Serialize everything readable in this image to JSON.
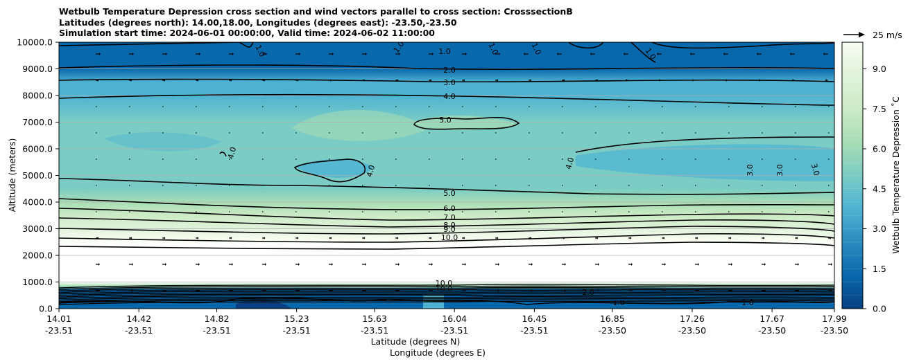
{
  "chart_data": {
    "type": "contourf",
    "title_lines": [
      "Wetbulb Temperature Depression cross section and wind vectors parallel to cross section: CrosssectionB",
      "Latitudes (degrees north): 14.00,18.00, Longitudes (degrees east): -23.50,-23.50",
      "Simulation start time: 2024-06-01 00:00:00, Valid time: 2024-06-02 11:00:00"
    ],
    "ylabel": "Altitude (meters)",
    "xlabel_lat": "Latitude (degrees N)",
    "xlabel_lon": "Longitude (degrees E)",
    "ylim": [
      0,
      10000
    ],
    "y_ticks": [
      "0.0",
      "1000.0",
      "2000.0",
      "3000.0",
      "4000.0",
      "5000.0",
      "6000.0",
      "7000.0",
      "8000.0",
      "9000.0",
      "10000.0"
    ],
    "x_ticks": [
      {
        "lat": "14.01",
        "lon": "-23.51"
      },
      {
        "lat": "14.42",
        "lon": "-23.51"
      },
      {
        "lat": "14.82",
        "lon": "-23.51"
      },
      {
        "lat": "15.23",
        "lon": "-23.51"
      },
      {
        "lat": "15.63",
        "lon": "-23.51"
      },
      {
        "lat": "16.04",
        "lon": "-23.51"
      },
      {
        "lat": "16.45",
        "lon": "-23.51"
      },
      {
        "lat": "16.85",
        "lon": "-23.50"
      },
      {
        "lat": "17.26",
        "lon": "-23.50"
      },
      {
        "lat": "17.67",
        "lon": "-23.50"
      },
      {
        "lat": "17.99",
        "lon": "-23.50"
      }
    ],
    "x_range": [
      14.01,
      17.99
    ],
    "colorbar": {
      "label": "Wetbulb Temperature Depression ˚C",
      "range": [
        0,
        10
      ],
      "ticks": [
        "0.0",
        "1.5",
        "3.0",
        "4.5",
        "6.0",
        "7.5",
        "9.0"
      ],
      "colors": [
        "#084081",
        "#0868ac",
        "#2b8cbe",
        "#4eb3d3",
        "#7bccc4",
        "#a8ddb5",
        "#ccebc5",
        "#e0f3db",
        "#f7fcf0"
      ]
    },
    "contour_labels": [
      "1.0",
      "2.0",
      "3.0",
      "4.0",
      "5.0",
      "6.0",
      "7.0",
      "8.0",
      "9.0",
      "10.0"
    ],
    "wind_reference": {
      "label": "25 m/s",
      "speed": 25
    },
    "profile": [
      {
        "alt": 10000,
        "value": 0.9
      },
      {
        "alt": 9000,
        "value": 1.8
      },
      {
        "alt": 8500,
        "value": 3.2
      },
      {
        "alt": 8000,
        "value": 4.3
      },
      {
        "alt": 7000,
        "value": 4.7
      },
      {
        "alt": 6000,
        "value": 4.6
      },
      {
        "alt": 5000,
        "value": 4.4
      },
      {
        "alt": 4500,
        "value": 5.0
      },
      {
        "alt": 4000,
        "value": 6.2
      },
      {
        "alt": 3500,
        "value": 7.5
      },
      {
        "alt": 3000,
        "value": 8.6
      },
      {
        "alt": 2600,
        "value": 9.6
      },
      {
        "alt": 2400,
        "value": 10.2
      },
      {
        "alt": 1000,
        "value": 10.5
      },
      {
        "alt": 850,
        "value": 6.0
      },
      {
        "alt": 700,
        "value": 1.5
      },
      {
        "alt": 0,
        "value": 0.5
      }
    ]
  }
}
